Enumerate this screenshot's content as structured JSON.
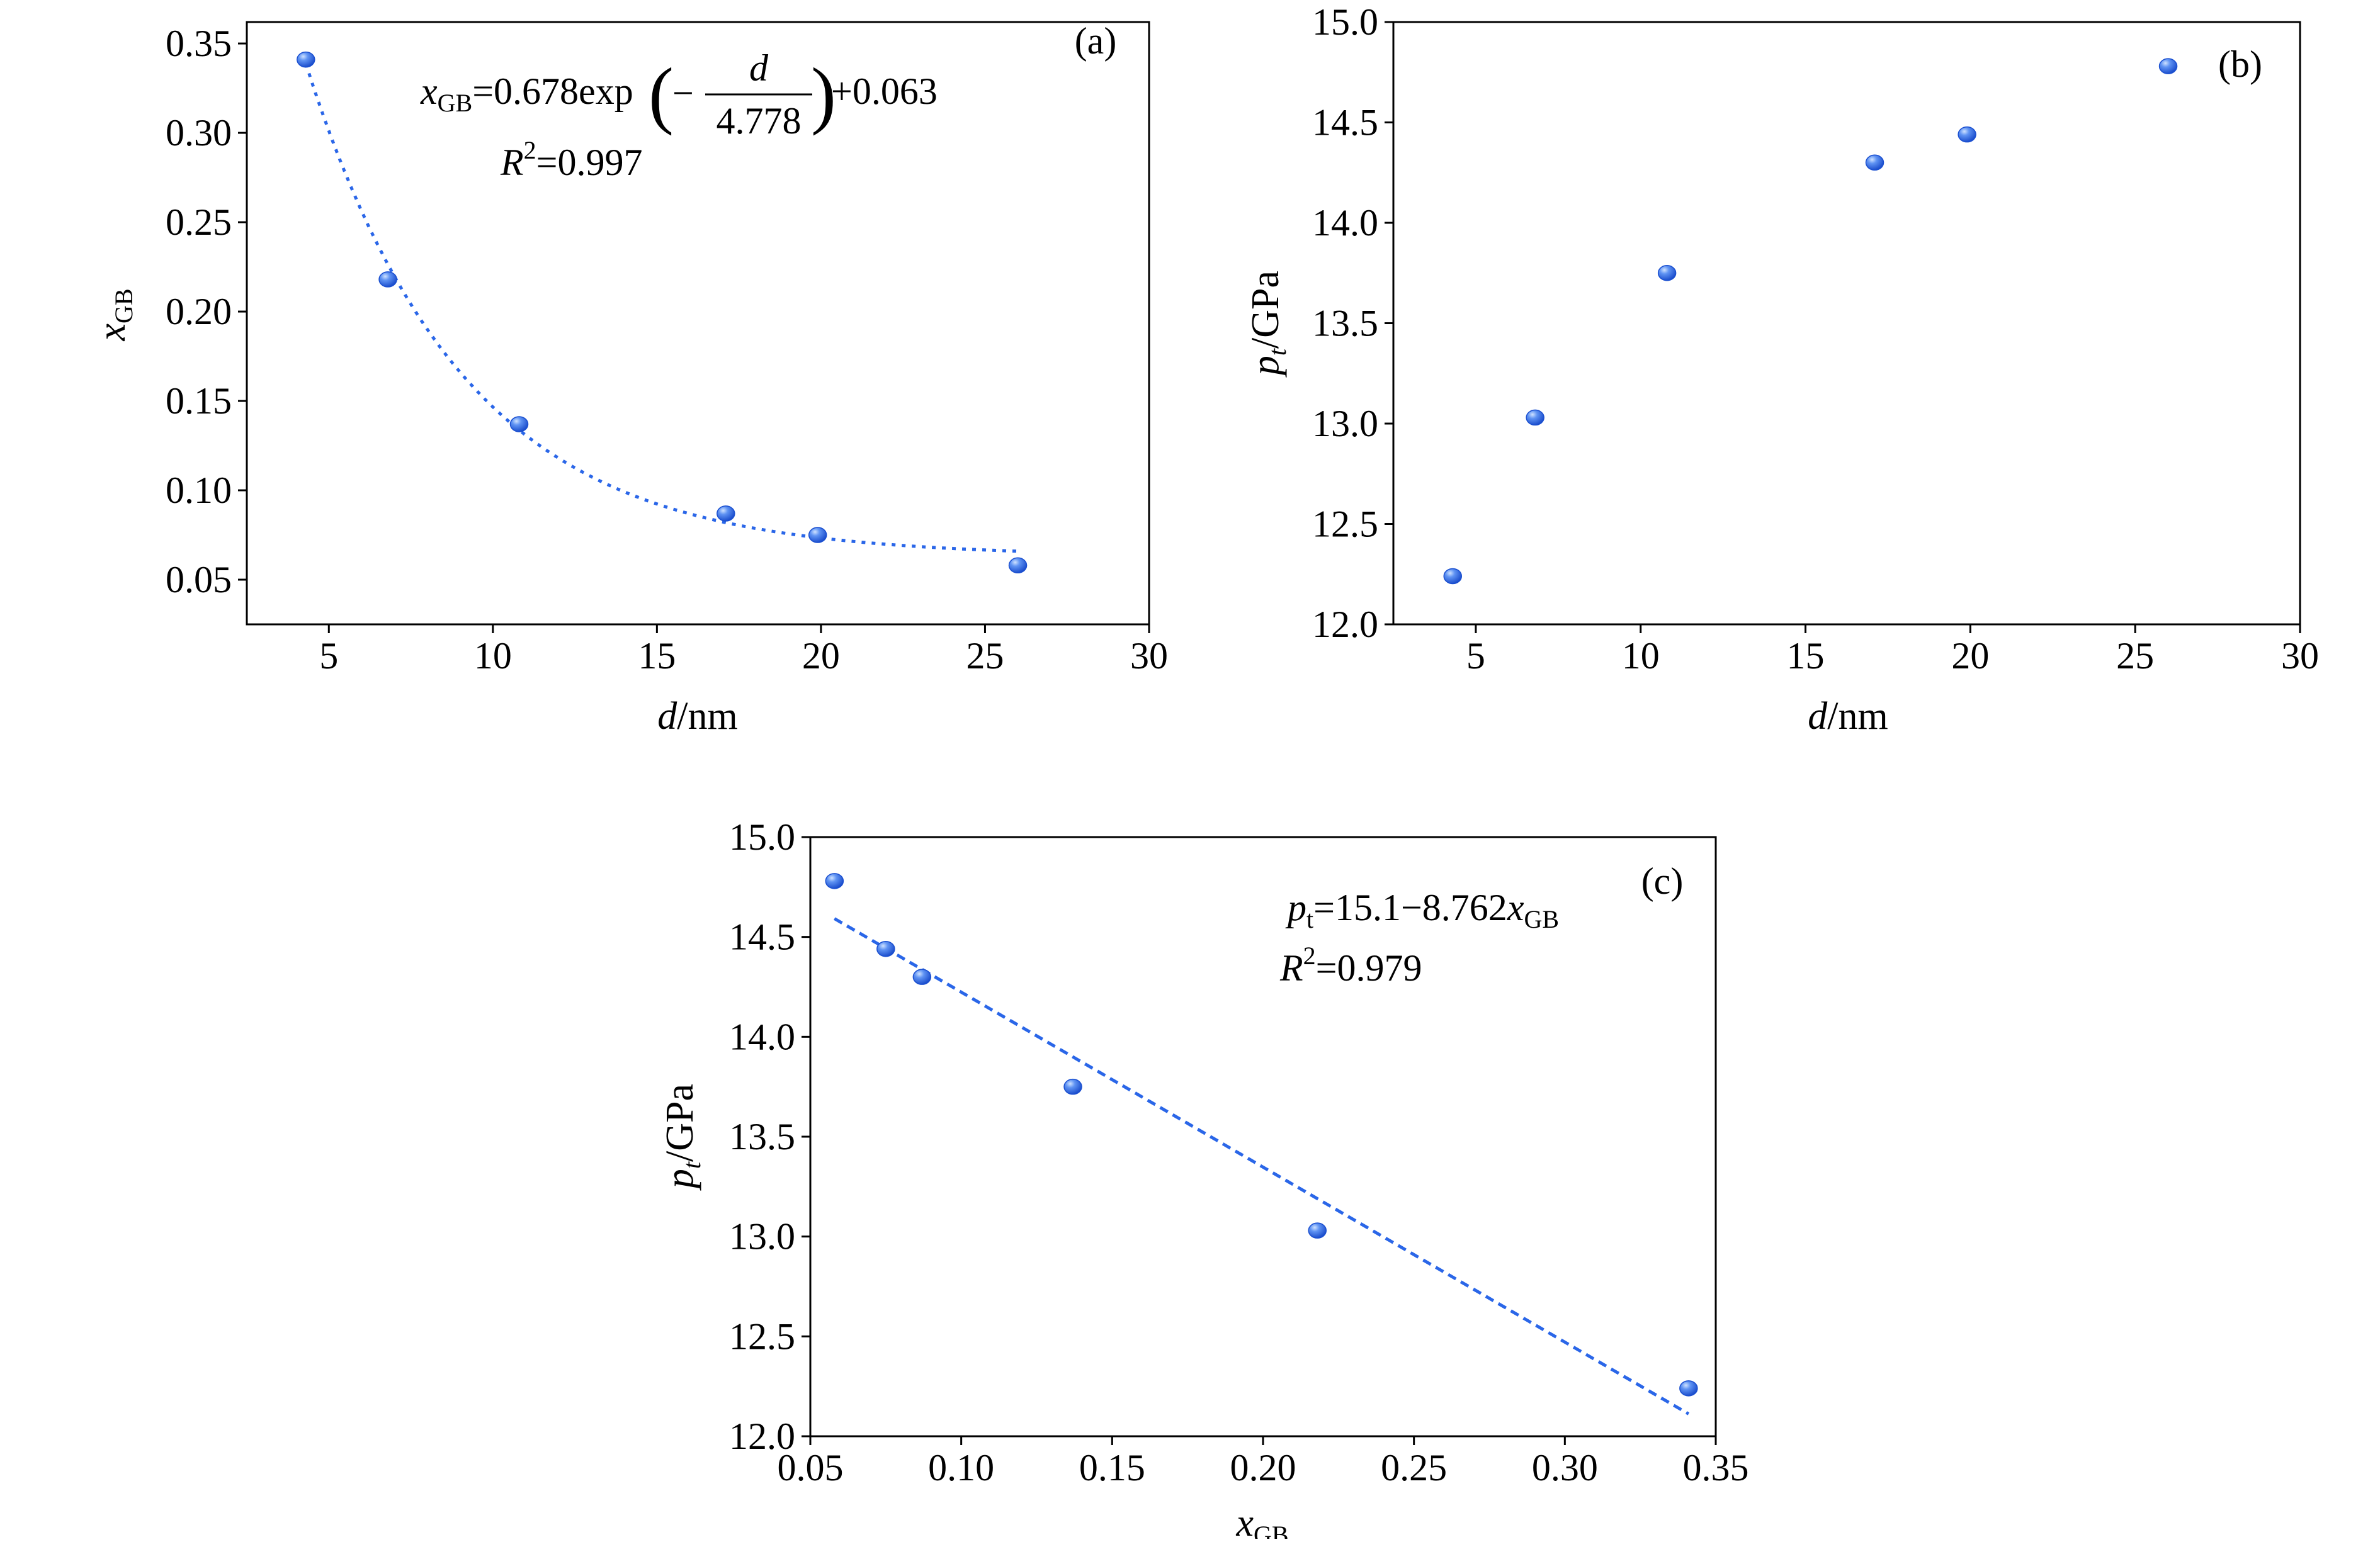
{
  "colors": {
    "marker": "#1f5fe0",
    "marker_highlight": "#9cc4ff",
    "fit_line": "#2a66e8",
    "axis": "#000000"
  },
  "chart_data": [
    {
      "id": "a",
      "type": "scatter",
      "panel_label": "(a)",
      "xlabel": {
        "main": "d",
        "unit": "/nm"
      },
      "ylabel": {
        "main": "x",
        "sub": "GB"
      },
      "xlim": [
        2.5,
        30
      ],
      "ylim": [
        0.025,
        0.362
      ],
      "xticks": [
        5,
        10,
        15,
        20,
        25,
        30
      ],
      "xtick_labels": [
        "5",
        "10",
        "15",
        "20",
        "25",
        "30"
      ],
      "yticks": [
        0.05,
        0.1,
        0.15,
        0.2,
        0.25,
        0.3,
        0.35
      ],
      "ytick_labels": [
        "0.05",
        "0.10",
        "0.15",
        "0.20",
        "0.25",
        "0.30",
        "0.35"
      ],
      "grid": false,
      "series": [
        {
          "x": [
            4.3,
            6.8,
            10.8,
            17.1,
            19.9,
            26.0
          ],
          "y": [
            0.341,
            0.218,
            0.137,
            0.087,
            0.075,
            0.058
          ]
        }
      ],
      "fit": {
        "kind": "exponential",
        "a": 0.678,
        "t": 4.778,
        "c": 0.063,
        "x_range": [
          4.3,
          26.0
        ]
      },
      "equation": {
        "lhs_main": "x",
        "lhs_sub": "GB",
        "pre": "=0.678exp",
        "minus": "−",
        "numerator": "d",
        "denominator": "4.778",
        "post": "+0.063",
        "r2_main": "R",
        "r2_sup": "2",
        "r2_val": "=0.997"
      }
    },
    {
      "id": "b",
      "type": "scatter",
      "panel_label": "(b)",
      "xlabel": {
        "main": "d",
        "unit": "/nm"
      },
      "ylabel": {
        "main": "p",
        "sub": "t",
        "unit": "/GPa"
      },
      "xlim": [
        2.5,
        30
      ],
      "ylim": [
        12.0,
        15.0
      ],
      "xticks": [
        5,
        10,
        15,
        20,
        25,
        30
      ],
      "xtick_labels": [
        "5",
        "10",
        "15",
        "20",
        "25",
        "30"
      ],
      "yticks": [
        12.0,
        12.5,
        13.0,
        13.5,
        14.0,
        14.5,
        15.0
      ],
      "ytick_labels": [
        "12.0",
        "12.5",
        "13.0",
        "13.5",
        "14.0",
        "14.5",
        "15.0"
      ],
      "grid": false,
      "series": [
        {
          "x": [
            4.3,
            6.8,
            10.8,
            17.1,
            19.9,
            26.0
          ],
          "y": [
            12.24,
            13.03,
            13.75,
            14.3,
            14.44,
            14.78
          ]
        }
      ]
    },
    {
      "id": "c",
      "type": "scatter",
      "panel_label": "(c)",
      "xlabel": {
        "main": "x",
        "sub": "GB"
      },
      "ylabel": {
        "main": "p",
        "sub": "t",
        "unit": "/GPa"
      },
      "xlim": [
        0.05,
        0.35
      ],
      "ylim": [
        12.0,
        15.0
      ],
      "xticks": [
        0.05,
        0.1,
        0.15,
        0.2,
        0.25,
        0.3,
        0.35
      ],
      "xtick_labels": [
        "0.05",
        "0.10",
        "0.15",
        "0.20",
        "0.25",
        "0.30",
        "0.35"
      ],
      "yticks": [
        12.0,
        12.5,
        13.0,
        13.5,
        14.0,
        14.5,
        15.0
      ],
      "ytick_labels": [
        "12.0",
        "12.5",
        "13.0",
        "13.5",
        "14.0",
        "14.5",
        "15.0"
      ],
      "grid": false,
      "series": [
        {
          "x": [
            0.058,
            0.075,
            0.087,
            0.137,
            0.218,
            0.341
          ],
          "y": [
            14.78,
            14.44,
            14.3,
            13.75,
            13.03,
            12.24
          ]
        }
      ],
      "fit": {
        "kind": "linear",
        "intercept": 15.1,
        "slope": -8.762,
        "x_range": [
          0.058,
          0.341
        ]
      },
      "equation": {
        "lhs_main": "p",
        "lhs_sub": "t",
        "rhs": "=15.1−8.762",
        "var_main": "x",
        "var_sub": "GB",
        "r2_main": "R",
        "r2_sup": "2",
        "r2_val": "=0.979"
      }
    }
  ]
}
